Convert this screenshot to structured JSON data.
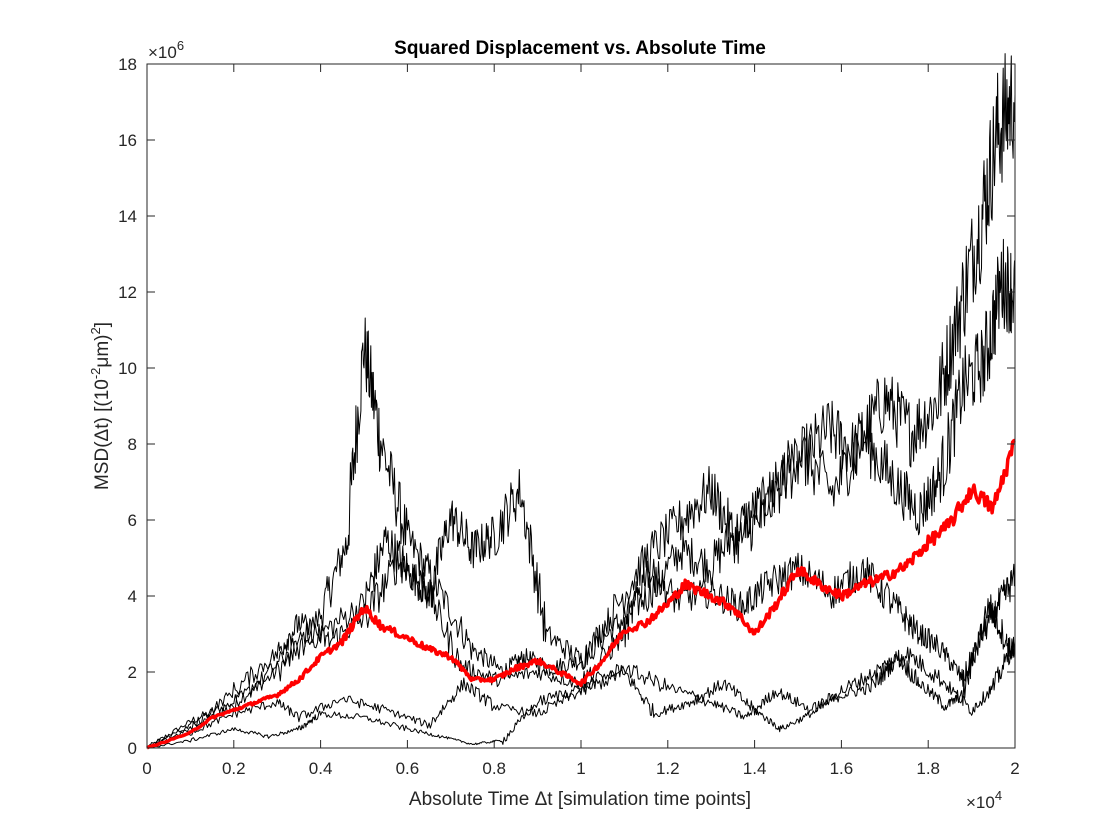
{
  "chart_data": {
    "type": "line",
    "title": "Squared Displacement vs. Absolute Time",
    "xlabel": "Absolute Time Δt [simulation time points]",
    "ylabel": "MSD(Δt) [(10⁻²μm)²]",
    "ylabel_parts": {
      "prefix": "MSD(Δt) [(10",
      "exp1": "-2",
      "mid": "μm)",
      "exp2": "2",
      "suffix": "]"
    },
    "x_exponent_label": {
      "base": "×10",
      "exp": "4"
    },
    "y_exponent_label": {
      "base": "×10",
      "exp": "6"
    },
    "xlim": [
      0,
      20000
    ],
    "ylim": [
      0,
      18000000
    ],
    "xticks": [
      0,
      2000,
      4000,
      6000,
      8000,
      10000,
      12000,
      14000,
      16000,
      18000,
      20000
    ],
    "xtick_labels": [
      "0",
      "0.2",
      "0.4",
      "0.6",
      "0.8",
      "1",
      "1.2",
      "1.4",
      "1.6",
      "1.8",
      "2"
    ],
    "yticks": [
      0,
      2000000,
      4000000,
      6000000,
      8000000,
      10000000,
      12000000,
      14000000,
      16000000,
      18000000
    ],
    "ytick_labels": [
      "0",
      "2",
      "4",
      "6",
      "8",
      "10",
      "12",
      "14",
      "16",
      "18"
    ],
    "grid": false,
    "series": [
      {
        "color": "#000000",
        "width": 1,
        "x": [
          0,
          1000,
          2000,
          3000,
          4000,
          4600,
          5000,
          5400,
          6000,
          6700,
          7500,
          8200,
          8700,
          9300,
          10000,
          10800,
          11500,
          12300,
          13000,
          13700,
          14300,
          15000,
          15700,
          16300,
          17000,
          17600,
          18200,
          18700,
          19200,
          19600,
          20000
        ],
        "values": [
          0,
          700000,
          1200000,
          2000000,
          3500000,
          5400000,
          10600000,
          8000000,
          5500000,
          4200000,
          2600000,
          2000000,
          2400000,
          2100000,
          2300000,
          3200000,
          4000000,
          5200000,
          4800000,
          5900000,
          6600000,
          7500000,
          8400000,
          7800000,
          9200000,
          8300000,
          9100000,
          11400000,
          13800000,
          16200000,
          17200000
        ]
      },
      {
        "color": "#000000",
        "width": 1,
        "x": [
          0,
          1000,
          2000,
          3000,
          4000,
          5000,
          5500,
          6000,
          6500,
          7000,
          7500,
          8000,
          8600,
          9200,
          10000,
          10700,
          11500,
          12300,
          13000,
          13600,
          14200,
          15000,
          15800,
          16500,
          17200,
          17800,
          18300,
          18800,
          19300,
          19700,
          20000
        ],
        "values": [
          0,
          600000,
          1100000,
          2200000,
          3000000,
          3800000,
          5500000,
          4700000,
          4000000,
          6100000,
          5200000,
          5600000,
          6800000,
          3000000,
          2300000,
          3500000,
          5000000,
          6000000,
          6800000,
          5400000,
          6100000,
          7900000,
          6700000,
          8200000,
          7000000,
          6200000,
          7200000,
          9500000,
          10200000,
          12300000,
          12000000
        ]
      },
      {
        "color": "#000000",
        "width": 1,
        "x": [
          0,
          1000,
          2000,
          3000,
          3500,
          4200,
          5000,
          5800,
          6500,
          7200,
          8000,
          9000,
          10000,
          11000,
          11500,
          12200,
          13000,
          13700,
          14300,
          15000,
          15800,
          16500,
          17200,
          17700,
          18300,
          18800,
          19200,
          19600,
          20000
        ],
        "values": [
          0,
          500000,
          1500000,
          2500000,
          3300000,
          2800000,
          3400000,
          4900000,
          4100000,
          2200000,
          1800000,
          2000000,
          1700000,
          3000000,
          4700000,
          3900000,
          4100000,
          3700000,
          4300000,
          4700000,
          4100000,
          4700000,
          3800000,
          3100000,
          2600000,
          1800000,
          2900000,
          3700000,
          4500000
        ]
      },
      {
        "color": "#000000",
        "width": 1,
        "x": [
          0,
          1000,
          2000,
          3000,
          3500,
          4500,
          5500,
          6500,
          7300,
          8000,
          9000,
          10000,
          11000,
          11700,
          12500,
          13300,
          14000,
          14600,
          15300,
          16000,
          16700,
          17300,
          17800,
          18400,
          18800,
          19400,
          19800,
          20000
        ],
        "values": [
          0,
          400000,
          900000,
          1200000,
          800000,
          1300000,
          1000000,
          600000,
          1700000,
          1100000,
          900000,
          1500000,
          2000000,
          900000,
          1200000,
          1700000,
          1000000,
          500000,
          900000,
          1400000,
          1600000,
          2400000,
          1700000,
          1100000,
          1400000,
          3800000,
          2800000,
          2400000
        ]
      },
      {
        "color": "#000000",
        "width": 1,
        "x": [
          0,
          1000,
          2000,
          2800,
          3500,
          4000,
          5000,
          6000,
          6800,
          7500,
          8200,
          9000,
          10000,
          11000,
          12000,
          13000,
          13800,
          14500,
          15300,
          16000,
          16800,
          17500,
          18300,
          19000,
          19500,
          20000
        ],
        "values": [
          0,
          200000,
          500000,
          300000,
          500000,
          900000,
          800000,
          500000,
          300000,
          100000,
          200000,
          1200000,
          1600000,
          2100000,
          1600000,
          1200000,
          800000,
          1500000,
          1000000,
          1500000,
          2000000,
          2500000,
          1800000,
          1000000,
          1600000,
          2800000
        ]
      },
      {
        "color": "#ff0000",
        "width": 3.5,
        "x": [
          0,
          1000,
          1500,
          2000,
          2500,
          3000,
          3500,
          4000,
          4500,
          5000,
          5400,
          6000,
          6500,
          7000,
          7500,
          8000,
          8500,
          9000,
          9500,
          10000,
          10500,
          11000,
          11500,
          12000,
          12400,
          13000,
          13500,
          14000,
          14500,
          15000,
          15500,
          16000,
          16500,
          17000,
          17500,
          18000,
          18500,
          19000,
          19500,
          20000
        ],
        "values": [
          0,
          400000,
          800000,
          1000000,
          1200000,
          1400000,
          1800000,
          2400000,
          2800000,
          3700000,
          3200000,
          2900000,
          2600000,
          2400000,
          1800000,
          1800000,
          2100000,
          2300000,
          2000000,
          1700000,
          2300000,
          3100000,
          3300000,
          3800000,
          4300000,
          4000000,
          3700000,
          3000000,
          3800000,
          4700000,
          4300000,
          4000000,
          4300000,
          4500000,
          4800000,
          5400000,
          5900000,
          6800000,
          6300000,
          8100000
        ]
      }
    ]
  }
}
